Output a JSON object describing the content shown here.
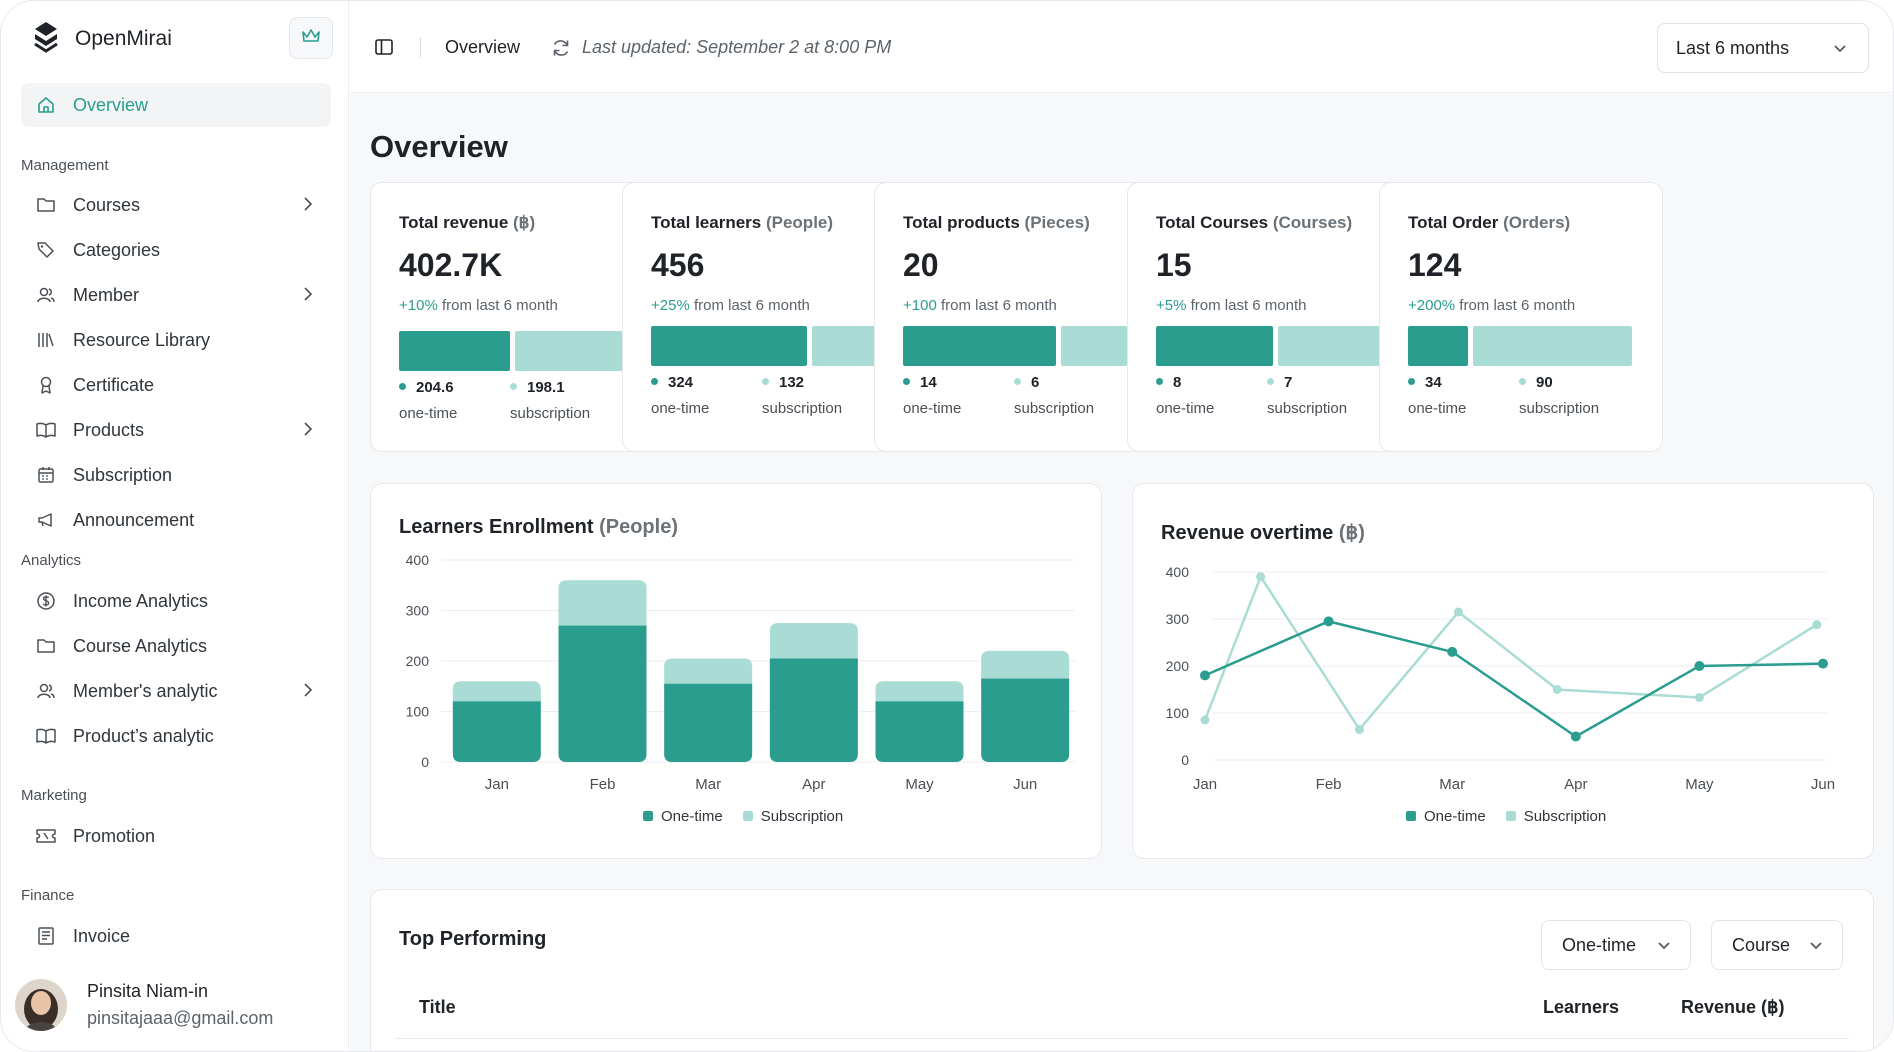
{
  "brand": {
    "name": "OpenMirai"
  },
  "sidebar": {
    "overview": "Overview",
    "sections": {
      "management": "Management",
      "analytics": "Analytics",
      "marketing": "Marketing",
      "finance": "Finance"
    },
    "management_items": [
      "Courses",
      "Categories",
      "Member",
      "Resource Library",
      "Certificate",
      "Products",
      "Subscription",
      "Announcement"
    ],
    "analytics_items": [
      "Income Analytics",
      "Course Analytics",
      "Member's analytic",
      "Product’s analytic"
    ],
    "marketing_items": [
      "Promotion"
    ],
    "finance_items": [
      "Invoice"
    ]
  },
  "user": {
    "name": "Pinsita Niam-in",
    "email": "pinsitajaaa@gmail.com"
  },
  "header": {
    "title": "Overview",
    "updated": "Last updated: September 2 at 8:00 PM",
    "range": "Last 6 months"
  },
  "page_title": "Overview",
  "kpis": [
    {
      "title": "Total revenue",
      "unit": "(฿)",
      "value": "402.7K",
      "pct": "+10%",
      "change": " from last 6 month",
      "a_value": "204.6",
      "a_label": "one-time",
      "b_value": "198.1",
      "b_label": "subscription",
      "a": 204.6,
      "b": 198.1
    },
    {
      "title": "Total learners",
      "unit": "(People)",
      "value": "456",
      "pct": "+25%",
      "change": " from last 6 month",
      "a_value": "324",
      "a_label": "one-time",
      "b_value": "132",
      "b_label": "subscription",
      "a": 324,
      "b": 132
    },
    {
      "title": "Total products",
      "unit": "(Pieces)",
      "value": "20",
      "pct": "+100",
      "change": " from last 6 month",
      "a_value": "14",
      "a_label": "one-time",
      "b_value": "6",
      "b_label": "subscription",
      "a": 14,
      "b": 6
    },
    {
      "title": "Total Courses",
      "unit": "(Courses)",
      "value": "15",
      "pct": "+5%",
      "change": " from last 6 month",
      "a_value": "8",
      "a_label": "one-time",
      "b_value": "7",
      "b_label": "subscription",
      "a": 8,
      "b": 7
    },
    {
      "title": "Total Order",
      "unit": "(Orders)",
      "value": "124",
      "pct": "+200%",
      "change": " from last 6 month",
      "a_value": "34",
      "a_label": "one-time",
      "b_value": "90",
      "b_label": "subscription",
      "a": 34,
      "b": 90
    }
  ],
  "enrollment": {
    "title": "Learners Enrollment",
    "unit": "(People)"
  },
  "revenue": {
    "title": "Revenue overtime",
    "unit": "(฿)"
  },
  "legend": {
    "one_time": "One-time",
    "subscription": "Subscription"
  },
  "colors": {
    "accent": "#2a9d8f",
    "accent_light": "#a8dcd4"
  },
  "chart_data": [
    {
      "type": "bar",
      "title": "Learners Enrollment (People)",
      "stacked": true,
      "categories": [
        "Jan",
        "Feb",
        "Mar",
        "Apr",
        "May",
        "Jun"
      ],
      "series": [
        {
          "name": "One-time",
          "values": [
            120,
            270,
            155,
            205,
            120,
            165
          ]
        },
        {
          "name": "Subscription",
          "values": [
            40,
            90,
            50,
            70,
            40,
            55
          ]
        }
      ],
      "ylim": [
        0,
        400
      ],
      "yticks": [
        0,
        100,
        200,
        300,
        400
      ],
      "grid": true,
      "legend": "bottom"
    },
    {
      "type": "line",
      "title": "Revenue overtime (฿)",
      "x": [
        "Jan",
        "Feb",
        "Mar",
        "Apr",
        "May",
        "Jun"
      ],
      "series": [
        {
          "name": "One-time",
          "values": [
            180,
            295,
            230,
            50,
            200,
            205
          ]
        },
        {
          "name": "Subscription",
          "points": [
            [
              0,
              85
            ],
            [
              0.45,
              390
            ],
            [
              1.25,
              65
            ],
            [
              2.05,
              315
            ],
            [
              2.85,
              150
            ],
            [
              4.0,
              133
            ],
            [
              4.95,
              288
            ]
          ]
        }
      ],
      "ylim": [
        0,
        400
      ],
      "yticks": [
        0,
        100,
        200,
        300,
        400
      ],
      "grid": true,
      "legend": "bottom"
    }
  ],
  "top_performing": {
    "title": "Top Performing",
    "filter_type": "One-time",
    "filter_kind": "Course",
    "columns": [
      "Title",
      "Learners",
      "Revenue (฿)"
    ]
  }
}
